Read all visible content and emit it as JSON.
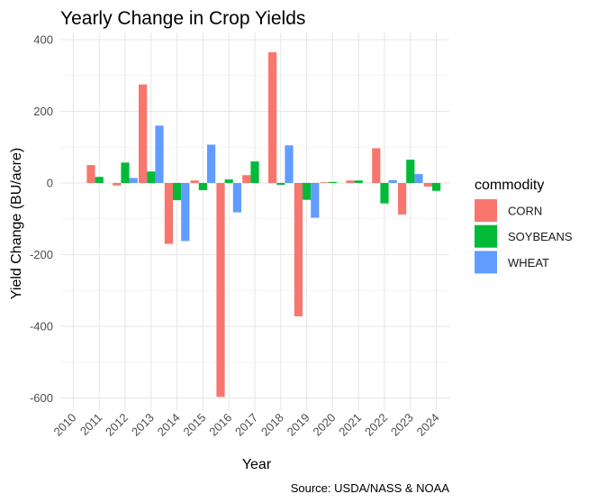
{
  "chart_data": {
    "type": "bar",
    "title": "Yearly Change in Crop Yields",
    "xlabel": "Year",
    "ylabel": "Yield Change (BU/acre)",
    "caption": "Source: USDA/NASS & NOAA",
    "categories": [
      "2010",
      "2011",
      "2012",
      "2013",
      "2014",
      "2015",
      "2016",
      "2017",
      "2018",
      "2019",
      "2020",
      "2021",
      "2022",
      "2023",
      "2024"
    ],
    "y_ticks": [
      400,
      200,
      0,
      -200,
      -400,
      -600
    ],
    "y_tick_labels": [
      "400",
      "200",
      "0",
      "-200",
      "-400",
      "-600"
    ],
    "ylim": [
      -650,
      400
    ],
    "grid": true,
    "legend": {
      "title": "commodity",
      "placement": "right"
    },
    "series": [
      {
        "name": "CORN",
        "color": "#F8766D",
        "values": [
          null,
          50,
          -7,
          275,
          -170,
          7,
          -597,
          22,
          365,
          -372,
          2,
          7,
          97,
          -88,
          -10
        ]
      },
      {
        "name": "SOYBEANS",
        "color": "#00BA38",
        "values": [
          null,
          17,
          57,
          32,
          -48,
          -20,
          10,
          60,
          -5,
          -47,
          3,
          7,
          -57,
          65,
          -22
        ]
      },
      {
        "name": "WHEAT",
        "color": "#619CFF",
        "values": [
          null,
          null,
          14,
          160,
          -162,
          107,
          -82,
          null,
          105,
          -97,
          null,
          null,
          8,
          25,
          null
        ]
      }
    ]
  }
}
